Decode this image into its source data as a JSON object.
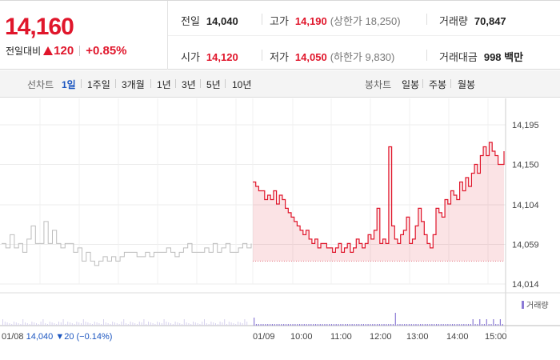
{
  "quote": {
    "price": "14,160",
    "change_label": "전일대비",
    "change": "120",
    "change_pct": "+0.85%",
    "prev_close_label": "전일",
    "prev_close": "14,040",
    "high_label": "고가",
    "high": "14,190",
    "upper_limit": "(상한가 18,250)",
    "volume_label": "거래량",
    "volume": "70,847",
    "open_label": "시가",
    "open": "14,120",
    "low_label": "저가",
    "low": "14,050",
    "lower_limit": "(하한가 9,830)",
    "value_label": "거래대금",
    "value": "998 백만"
  },
  "toolbar": {
    "line_label": "선차트",
    "periods": [
      "1일",
      "1주일",
      "3개월",
      "1년",
      "3년",
      "5년",
      "10년"
    ],
    "candle_label": "봉차트",
    "candles": [
      "일봉",
      "주봉",
      "월봉"
    ]
  },
  "chart_axis": {
    "y_ticks": [
      "14,195",
      "14,150",
      "14,104",
      "14,059",
      "14,014"
    ],
    "volume_legend": "거래량",
    "prev_date": "01/08",
    "prev_value": "14,040",
    "prev_change": "▼20 (−0.14%)",
    "today_date": "01/09",
    "time_ticks": [
      "10:00",
      "11:00",
      "12:00",
      "13:00",
      "14:00",
      "15:00"
    ]
  },
  "colors": {
    "up": "#e0162b",
    "down": "#1c56c0",
    "prev_line": "#bdbdbd",
    "volume": "#8c7bd6"
  },
  "chart_data": {
    "type": "line",
    "ylim": [
      14014,
      14195
    ],
    "y_ticks": [
      14195,
      14150,
      14104,
      14059,
      14014
    ],
    "prev_close": 14040,
    "series": [
      {
        "values": [
          14130,
          14125,
          14120,
          14120,
          14110,
          14115,
          14110,
          14120,
          14105,
          14115,
          14110,
          14100,
          14095,
          14090,
          14085,
          14080,
          14075,
          14070,
          14075,
          14065,
          14060,
          14065,
          14055,
          14060,
          14060,
          14055,
          14055,
          14050,
          14055,
          14060,
          14050,
          14055,
          14060,
          14050,
          14055,
          14065,
          14060,
          14055,
          14060,
          14070,
          14065,
          14075,
          14100,
          14060,
          14065,
          14060,
          14170,
          14080,
          14065,
          14060,
          14070,
          14075,
          14090,
          14060,
          14065,
          14080,
          14100,
          14085,
          14070,
          14060,
          14055,
          14070,
          14100,
          14095,
          14090,
          14110,
          14105,
          14120,
          14115,
          14110,
          14130,
          14120,
          14135,
          14125,
          14140,
          14150,
          14140,
          14160,
          14170,
          14160,
          14175,
          14165,
          14160,
          14150,
          14150,
          14165
        ]
      }
    ],
    "prev_series": [
      {
        "values": [
          14060,
          14055,
          14070,
          14055,
          14060,
          14050,
          14065,
          14080,
          14060,
          14060,
          14085,
          14060,
          14075,
          14060,
          14055,
          14060,
          14060,
          14050,
          14055,
          14040,
          14050,
          14040,
          14035,
          14040,
          14045,
          14040,
          14045,
          14040,
          14045,
          14050,
          14050,
          14050,
          14045,
          14045,
          14050,
          14045,
          14050,
          14050,
          14050,
          14055,
          14050,
          14045,
          14050,
          14055,
          14060,
          14050,
          14050,
          14050,
          14055,
          14050,
          14060,
          14050,
          14055,
          14060,
          14050,
          14050,
          14055,
          14060,
          14055,
          14060
        ]
      }
    ]
  }
}
